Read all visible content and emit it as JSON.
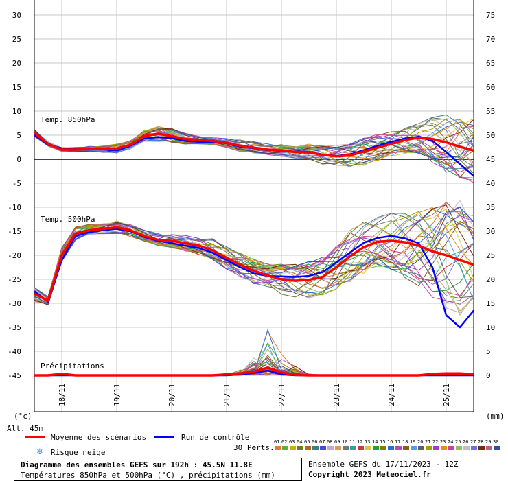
{
  "chart_data": {
    "type": "line",
    "title": "Diagramme des ensembles GEFS sur 192h : 45.5N 11.8E",
    "subtitle": "Températures 850hPa et 500hPa (°C) , précipitations (mm)",
    "run_info": "Ensemble GEFS du 17/11/2023 - 12Z",
    "copyright": "Copyright 2023 Meteociel.fr",
    "altitude_label": "Alt. 45m",
    "left_axis_unit": "(°c)",
    "right_axis_unit": "(mm)",
    "left_ticks": [
      "30",
      "25",
      "20",
      "15",
      "10",
      "5",
      "0",
      "-5",
      "-10",
      "-15",
      "-20",
      "-25",
      "-30",
      "-35",
      "-40",
      "-45"
    ],
    "left_tick_values": [
      30,
      25,
      20,
      15,
      10,
      5,
      0,
      -5,
      -10,
      -15,
      -20,
      -25,
      -30,
      -35,
      -40,
      -45
    ],
    "right_ticks": [
      "75",
      "70",
      "65",
      "60",
      "55",
      "50",
      "45",
      "40",
      "35",
      "30",
      "25",
      "20",
      "15",
      "10",
      "5",
      "0"
    ],
    "ylim": [
      -55,
      30
    ],
    "x_range": [
      0,
      192
    ],
    "x_ticks": [
      {
        "label": "18/11",
        "x": 12
      },
      {
        "label": "19/11",
        "x": 36
      },
      {
        "label": "20/11",
        "x": 60
      },
      {
        "label": "21/11",
        "x": 84
      },
      {
        "label": "22/11",
        "x": 108
      },
      {
        "label": "23/11",
        "x": 132
      },
      {
        "label": "24/11",
        "x": 156
      },
      {
        "label": "25/11",
        "x": 180
      }
    ],
    "panel_labels": {
      "t850": "Temp. 850hPa",
      "t500": "Temp. 500hPa",
      "precip": "Précipitations"
    },
    "precip_zero_level": -45,
    "precip_mm_per_degree": 1,
    "x": [
      0,
      6,
      12,
      18,
      24,
      30,
      36,
      42,
      48,
      54,
      60,
      66,
      72,
      78,
      84,
      90,
      96,
      102,
      108,
      114,
      120,
      126,
      132,
      138,
      144,
      150,
      156,
      162,
      168,
      174,
      180,
      186,
      192
    ],
    "series": [
      {
        "name": "Moyenne des scénarios",
        "role": "mean",
        "color": "#ff0000",
        "t850": [
          5.5,
          3.2,
          2.0,
          2.0,
          2.1,
          2.1,
          2.2,
          3.0,
          4.8,
          5.3,
          4.8,
          4.2,
          4.0,
          3.8,
          3.4,
          2.8,
          2.4,
          2.0,
          1.8,
          1.5,
          1.4,
          0.9,
          0.6,
          0.8,
          1.6,
          2.4,
          3.2,
          4.0,
          4.5,
          4.2,
          3.5,
          2.6,
          1.8
        ],
        "t500": [
          -28,
          -29.5,
          -20,
          -15.5,
          -14.8,
          -14.5,
          -14.2,
          -14.8,
          -16,
          -16.8,
          -17,
          -17.5,
          -18,
          -19,
          -20.5,
          -22,
          -23.3,
          -24.2,
          -25.0,
          -25.3,
          -25.1,
          -24.5,
          -22.5,
          -20.2,
          -18.3,
          -17.2,
          -17.0,
          -17.3,
          -18.0,
          -19.2,
          -20.0,
          -21.0,
          -22.0
        ],
        "precip": [
          0,
          0,
          0.3,
          0,
          0,
          0,
          0,
          0,
          0,
          0,
          0,
          0,
          0,
          0,
          0.2,
          0.4,
          0.8,
          1.6,
          0.6,
          0.1,
          0,
          0,
          0,
          0,
          0,
          0,
          0,
          0,
          0,
          0.3,
          0.4,
          0.4,
          0.2
        ]
      },
      {
        "name": "Run de contrôle",
        "role": "control",
        "color": "#0000ff",
        "t850": [
          5.0,
          3.0,
          2.3,
          2.2,
          2.2,
          2.0,
          1.8,
          2.8,
          4.3,
          4.6,
          4.4,
          3.8,
          3.6,
          3.6,
          3.3,
          2.6,
          2.3,
          1.9,
          1.7,
          1.6,
          1.5,
          1.0,
          0.7,
          1.0,
          1.9,
          2.8,
          3.6,
          4.3,
          4.7,
          3.8,
          1.5,
          -1.0,
          -3.5
        ],
        "t500": [
          -27.5,
          -29.7,
          -21,
          -16,
          -15.2,
          -14.8,
          -14.5,
          -15,
          -16.2,
          -17,
          -17.5,
          -18,
          -18.5,
          -19.5,
          -21,
          -22.5,
          -23.8,
          -24.3,
          -24.4,
          -24.5,
          -24.3,
          -23.5,
          -21.5,
          -19.4,
          -17.4,
          -16.4,
          -16.0,
          -16.5,
          -17.5,
          -22.5,
          -32.5,
          -35.0,
          -31.5
        ],
        "precip": [
          0,
          0,
          0,
          0,
          0,
          0,
          0,
          0,
          0,
          0,
          0,
          0,
          0,
          0,
          0,
          0.2,
          0.5,
          1.0,
          0.2,
          0,
          0,
          0,
          0,
          0,
          0,
          0,
          0,
          0,
          0,
          0,
          0,
          0,
          0
        ]
      }
    ],
    "ensemble_note": "30 Perts.",
    "perturbation_labels": [
      "01",
      "02",
      "03",
      "04",
      "05",
      "06",
      "07",
      "08",
      "09",
      "10",
      "11",
      "12",
      "13",
      "14",
      "15",
      "16",
      "17",
      "18",
      "19",
      "20",
      "21",
      "22",
      "23",
      "24",
      "25",
      "26",
      "27",
      "28",
      "29",
      "30"
    ],
    "perturbation_colors": [
      "#e07b39",
      "#5fae3a",
      "#c8b400",
      "#6f7a2a",
      "#b5651d",
      "#3d7f7f",
      "#4a4ad8",
      "#d2a0c8",
      "#cfa15a",
      "#777777",
      "#3c9b9b",
      "#c83c3c",
      "#d8c840",
      "#20a040",
      "#808000",
      "#2a6fd8",
      "#b050b0",
      "#8a5a20",
      "#50a0e0",
      "#606060",
      "#a0a000",
      "#a040c0",
      "#e09020",
      "#d040a0",
      "#90c060",
      "#c0c0c0",
      "#7070e0",
      "#703010",
      "#c06080",
      "#3050a0"
    ],
    "ensemble_spread": {
      "t850_upper": [
        6.5,
        3.5,
        2.5,
        2.5,
        2.6,
        2.7,
        3.0,
        4.0,
        6.3,
        7.0,
        6.8,
        5.5,
        5.0,
        4.5,
        4.2,
        3.6,
        3.4,
        2.8,
        2.6,
        2.4,
        2.4,
        2.2,
        2.4,
        3.8,
        4.8,
        5.8,
        6.5,
        7.3,
        7.6,
        8.6,
        9.6,
        9.6,
        9.3
      ],
      "t850_lower": [
        4.8,
        2.5,
        1.6,
        1.4,
        1.4,
        1.3,
        1.0,
        2.0,
        3.8,
        3.7,
        3.4,
        3.0,
        3.0,
        2.8,
        2.2,
        1.1,
        0.9,
        0.4,
        0.0,
        -0.5,
        -1.2,
        -1.8,
        -2.3,
        -1.8,
        -1.5,
        -0.5,
        0.8,
        1.2,
        0.5,
        -1.5,
        -3.5,
        -4.5,
        -4.5
      ],
      "t500_upper": [
        -26,
        -28.5,
        -18.5,
        -14.5,
        -14.0,
        -13.5,
        -13.0,
        -13.8,
        -15.0,
        -15.5,
        -15.8,
        -16.0,
        -16.5,
        -17.0,
        -18.5,
        -19.8,
        -21.0,
        -22.0,
        -22.0,
        -21.2,
        -20.0,
        -18.5,
        -16.5,
        -15.0,
        -14.0,
        -13.5,
        -13.0,
        -13.2,
        -13.8,
        -13.5,
        -12.5,
        -13.0,
        -14.0
      ],
      "t500_lower": [
        -29.5,
        -30.5,
        -22,
        -17.5,
        -16.5,
        -16.0,
        -15.8,
        -16.5,
        -17.5,
        -18.5,
        -19.0,
        -19.5,
        -20.5,
        -22.0,
        -23.5,
        -25.0,
        -26.5,
        -27.5,
        -28.5,
        -29.0,
        -28.5,
        -28.0,
        -27.0,
        -26.0,
        -25.0,
        -24.5,
        -26.0,
        -29.0,
        -32.0,
        -34.0,
        -36.5,
        -38.0,
        -35.5
      ],
      "precip_upper": [
        0,
        0,
        0,
        0,
        0,
        0,
        0,
        0,
        0,
        0,
        0,
        0,
        0,
        0,
        0.5,
        1.5,
        4.0,
        11.0,
        5.5,
        2.5,
        0.5,
        0.2,
        0,
        0,
        0,
        0,
        0,
        0,
        0,
        0.5,
        0.6,
        0.5,
        0.3
      ]
    }
  },
  "legend": {
    "mean_label": "Moyenne des scénarios",
    "control_label": "Run de contrôle",
    "snow_label": "Risque neige",
    "snow_icon": "snowflake-icon",
    "perts_label": "30 Perts."
  }
}
